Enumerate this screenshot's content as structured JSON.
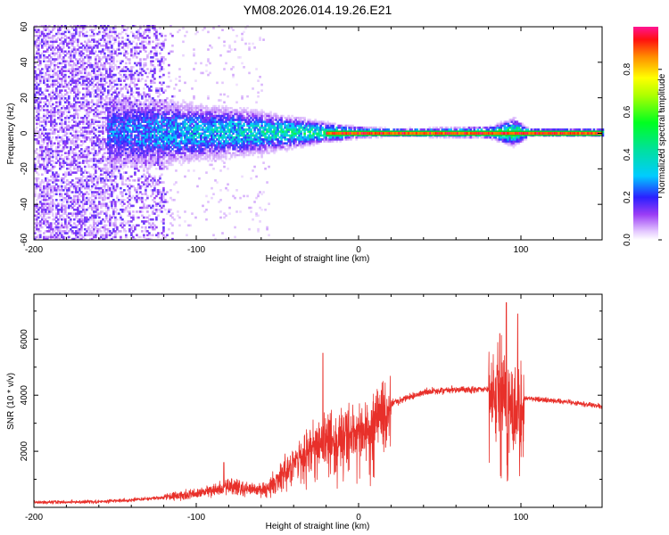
{
  "title": "YM08.2026.014.19.26.E21",
  "chart_data": [
    {
      "type": "heatmap",
      "title": "YM08.2026.014.19.26.E21",
      "xlabel": "Height of straight line (km)",
      "ylabel": "Frequency (Hz)",
      "xlim": [
        -200,
        150
      ],
      "ylim": [
        -60,
        60
      ],
      "x_ticks": [
        -200,
        -100,
        0,
        100
      ],
      "x_tick_labels": [
        "-200",
        "-100",
        "0",
        "100"
      ],
      "y_ticks": [
        -60,
        -40,
        -20,
        0,
        20,
        40,
        60
      ],
      "y_tick_labels": [
        "-60",
        "-40",
        "-20",
        "0",
        "20",
        "40",
        "60"
      ],
      "colorbar": {
        "label": "Normalized spectral amplitude",
        "range": [
          0,
          1
        ],
        "ticks": [
          0,
          0.2,
          0.4,
          0.6,
          0.8
        ],
        "tick_labels": [
          "0.0",
          "0.2",
          "0.4",
          "0.6",
          "0.8"
        ]
      },
      "feature": {
        "noise_region_x": [
          -200,
          -120
        ],
        "carrier_frequency_hz": 0,
        "carrier_start_x": -20,
        "spectral_halfwidth_hz": [
          {
            "x": -150,
            "hz": 20
          },
          {
            "x": -120,
            "hz": 18
          },
          {
            "x": -100,
            "hz": 15
          },
          {
            "x": -70,
            "hz": 12
          },
          {
            "x": -40,
            "hz": 8
          },
          {
            "x": -20,
            "hz": 5
          },
          {
            "x": 0,
            "hz": 3
          },
          {
            "x": 20,
            "hz": 2
          },
          {
            "x": 80,
            "hz": 3
          },
          {
            "x": 95,
            "hz": 7
          },
          {
            "x": 105,
            "hz": 2
          },
          {
            "x": 150,
            "hz": 2
          }
        ]
      }
    },
    {
      "type": "line",
      "xlabel": "Height of straight line (km)",
      "ylabel": "SNR (10 * v/v)",
      "xlim": [
        -200,
        150
      ],
      "ylim": [
        0,
        7600
      ],
      "x_ticks": [
        -200,
        -100,
        0,
        100
      ],
      "x_tick_labels": [
        "-200",
        "-100",
        "0",
        "100"
      ],
      "y_ticks": [
        2000,
        4000,
        6000
      ],
      "y_tick_labels": [
        "2000",
        "4000",
        "6000"
      ],
      "series": [
        {
          "name": "SNR",
          "color": "#e8302a",
          "envelope": [
            {
              "x": -200,
              "y": 180
            },
            {
              "x": -160,
              "y": 200
            },
            {
              "x": -130,
              "y": 300
            },
            {
              "x": -100,
              "y": 480
            },
            {
              "x": -80,
              "y": 750
            },
            {
              "x": -70,
              "y": 650
            },
            {
              "x": -60,
              "y": 650
            },
            {
              "x": -50,
              "y": 1100
            },
            {
              "x": -40,
              "y": 1750
            },
            {
              "x": -30,
              "y": 2300
            },
            {
              "x": -20,
              "y": 2600
            },
            {
              "x": -10,
              "y": 2800
            },
            {
              "x": 0,
              "y": 3000
            },
            {
              "x": 10,
              "y": 3300
            },
            {
              "x": 20,
              "y": 3700
            },
            {
              "x": 30,
              "y": 3900
            },
            {
              "x": 40,
              "y": 4100
            },
            {
              "x": 60,
              "y": 4200
            },
            {
              "x": 80,
              "y": 4200
            },
            {
              "x": 90,
              "y": 4100
            },
            {
              "x": 100,
              "y": 3900
            },
            {
              "x": 110,
              "y": 3850
            },
            {
              "x": 130,
              "y": 3750
            },
            {
              "x": 150,
              "y": 3600
            }
          ],
          "spikes": [
            {
              "x": -83,
              "y": 1600
            },
            {
              "x": -22,
              "y": 5500
            },
            {
              "x": -18,
              "y": 3100
            },
            {
              "x": 8,
              "y": 2300
            },
            {
              "x": 87,
              "y": 6200
            },
            {
              "x": 91,
              "y": 7300
            },
            {
              "x": 95,
              "y": 2400
            },
            {
              "x": 98,
              "y": 6900
            }
          ]
        }
      ]
    }
  ]
}
